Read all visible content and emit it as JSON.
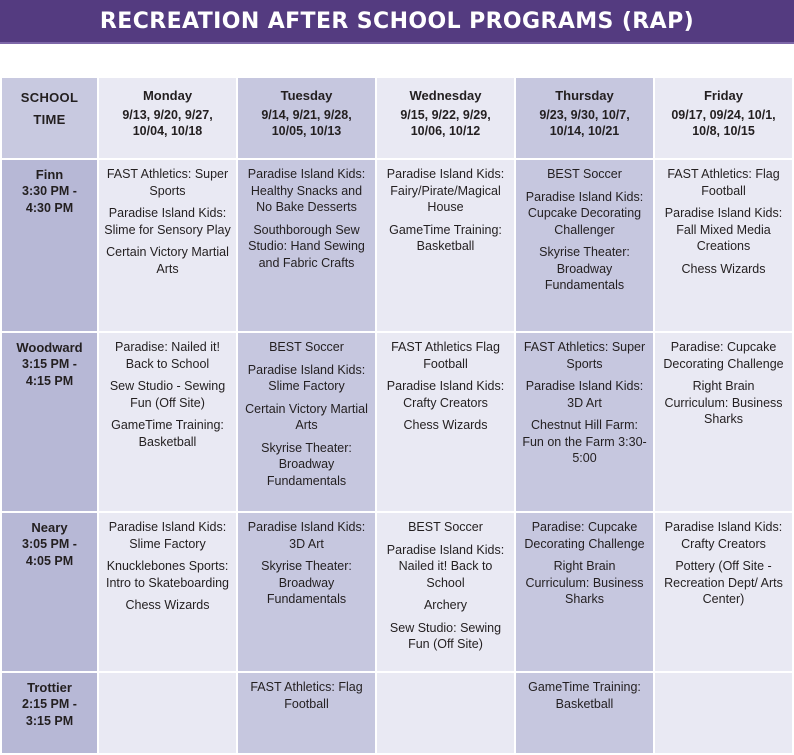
{
  "title": "RECREATION AFTER SCHOOL PROGRAMS (RAP)",
  "header": {
    "school_line1": "SCHOOL",
    "school_line2": "TIME",
    "days": [
      {
        "name": "Monday",
        "dates_line1": "9/13, 9/20, 9/27,",
        "dates_line2": "10/04, 10/18"
      },
      {
        "name": "Tuesday",
        "dates_line1": "9/14, 9/21, 9/28,",
        "dates_line2": "10/05, 10/13"
      },
      {
        "name": "Wednesday",
        "dates_line1": "9/15, 9/22, 9/29,",
        "dates_line2": "10/06, 10/12"
      },
      {
        "name": "Thursday",
        "dates_line1": "9/23, 9/30, 10/7,",
        "dates_line2": "10/14, 10/21"
      },
      {
        "name": "Friday",
        "dates_line1": "09/17, 09/24, 10/1,",
        "dates_line2": "10/8, 10/15"
      }
    ]
  },
  "rows": [
    {
      "school": "Finn",
      "time_line1": "3:30 PM -",
      "time_line2": "4:30 PM",
      "days": [
        [
          "FAST Athletics: Super Sports",
          "Paradise Island Kids: Slime for Sensory Play",
          "Certain Victory Martial Arts"
        ],
        [
          "Paradise Island Kids: Healthy Snacks and No Bake Desserts",
          "Southborough Sew Studio: Hand Sewing and Fabric Crafts"
        ],
        [
          "Paradise Island Kids: Fairy/Pirate/Magical House",
          "GameTime Training: Basketball"
        ],
        [
          "BEST Soccer",
          "Paradise Island Kids: Cupcake Decorating Challenger",
          "Skyrise Theater: Broadway Fundamentals"
        ],
        [
          "FAST Athletics: Flag Football",
          "Paradise Island Kids: Fall Mixed Media Creations",
          "Chess Wizards"
        ]
      ]
    },
    {
      "school": "Woodward",
      "time_line1": "3:15 PM -",
      "time_line2": "4:15 PM",
      "days": [
        [
          "Paradise: Nailed it! Back to School",
          "Sew Studio - Sewing Fun (Off Site)",
          "GameTime Training: Basketball"
        ],
        [
          "BEST Soccer",
          "Paradise Island Kids: Slime Factory",
          "Certain Victory Martial Arts",
          "Skyrise Theater: Broadway Fundamentals"
        ],
        [
          "FAST Athletics Flag Football",
          "Paradise Island Kids: Crafty Creators",
          "Chess Wizards"
        ],
        [
          "FAST Athletics: Super Sports",
          "Paradise Island Kids: 3D Art",
          "Chestnut Hill Farm: Fun on the Farm 3:30-5:00"
        ],
        [
          "Paradise: Cupcake Decorating Challenge",
          "Right Brain Curriculum: Business Sharks"
        ]
      ]
    },
    {
      "school": "Neary",
      "time_line1": "3:05 PM -",
      "time_line2": "4:05 PM",
      "days": [
        [
          "Paradise Island Kids: Slime Factory",
          "Knucklebones Sports: Intro to Skateboarding",
          "Chess Wizards"
        ],
        [
          "Paradise Island Kids: 3D Art",
          "Skyrise Theater: Broadway Fundamentals"
        ],
        [
          "BEST Soccer",
          "Paradise Island Kids: Nailed it! Back to School",
          "Archery",
          "Sew Studio: Sewing Fun (Off Site)"
        ],
        [
          "Paradise: Cupcake Decorating Challenge",
          "Right Brain Curriculum: Business Sharks"
        ],
        [
          "Paradise Island Kids: Crafty Creators",
          "Pottery (Off Site - Recreation Dept/ Arts Center)"
        ]
      ]
    },
    {
      "school": "Trottier",
      "time_line1": "2:15 PM -",
      "time_line2": "3:15 PM",
      "days": [
        [],
        [
          "FAST Athletics: Flag Football"
        ],
        [],
        [
          "GameTime Training: Basketball"
        ],
        []
      ]
    }
  ],
  "colors": {
    "banner": "#543b80",
    "dark_column": "#c6c7df",
    "light_column": "#e9e9f3",
    "school_column": "#b7b8d6"
  }
}
